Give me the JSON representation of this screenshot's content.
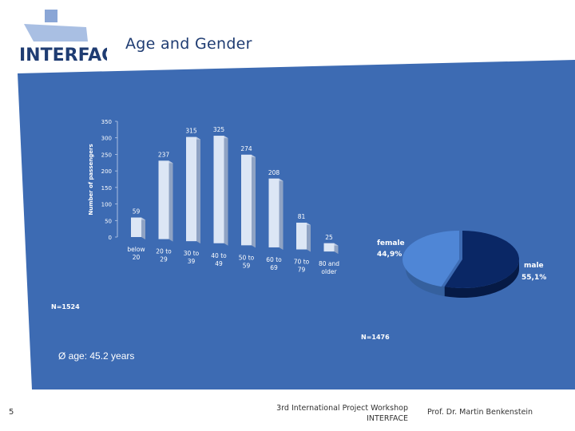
{
  "slide": {
    "title": "Age and Gender",
    "logo_text": "INTERFACE",
    "average_age": "Ø age: 45.2 years",
    "page_number": "5",
    "footer_line1": "3rd International Project Workshop",
    "footer_line2": "INTERFACE",
    "footer_author": "Prof. Dr. Martin Benkenstein"
  },
  "colors": {
    "background_blue": "#3d6bb3",
    "bar_face": "#dce6f5",
    "pie_female": "#4f86d6",
    "pie_male": "#0a2765",
    "title": "#1f3c72"
  },
  "chart_data": [
    {
      "type": "bar",
      "title": "",
      "ylabel": "Number of passengers",
      "xlabel": "",
      "ylim": [
        0,
        350
      ],
      "yticks": [
        0,
        50,
        100,
        150,
        200,
        250,
        300,
        350
      ],
      "categories": [
        [
          "below",
          "20"
        ],
        [
          "20 to",
          "29"
        ],
        [
          "30 to",
          "39"
        ],
        [
          "40 to",
          "49"
        ],
        [
          "50 to",
          "59"
        ],
        [
          "60 to",
          "69"
        ],
        [
          "70 to",
          "79"
        ],
        [
          "80 and",
          "older"
        ]
      ],
      "values": [
        59,
        237,
        315,
        325,
        274,
        208,
        81,
        25
      ],
      "note": "N=1524"
    },
    {
      "type": "pie",
      "title": "",
      "slices": [
        {
          "label": "female",
          "value_label": "44,9%",
          "value": 44.9
        },
        {
          "label": "male",
          "value_label": "55,1%",
          "value": 55.1
        }
      ],
      "note": "N=1476"
    }
  ]
}
